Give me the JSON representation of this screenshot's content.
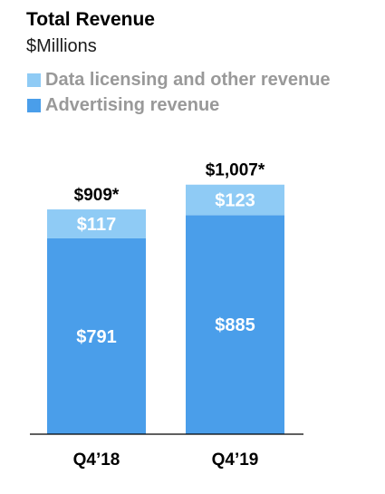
{
  "chart_data": {
    "type": "bar",
    "stacked": true,
    "title": "Total Revenue",
    "subtitle": "$Millions",
    "categories": [
      "Q4’18",
      "Q4’19"
    ],
    "series": [
      {
        "name": "Advertising revenue",
        "values": [
          791,
          885
        ],
        "labels": [
          "$791",
          "$885"
        ],
        "color": "#4a9eea"
      },
      {
        "name": "Data licensing and other revenue",
        "values": [
          117,
          123
        ],
        "labels": [
          "$117",
          "$123"
        ],
        "color": "#8fcbf5"
      }
    ],
    "totals": [
      909,
      1007
    ],
    "total_labels": [
      "$909*",
      "$1,007*"
    ],
    "legend_order": [
      1,
      0
    ],
    "legend_position": "top-left",
    "xlabel": "",
    "ylabel": "",
    "ylim": [
      0,
      1007
    ],
    "grid": false
  }
}
